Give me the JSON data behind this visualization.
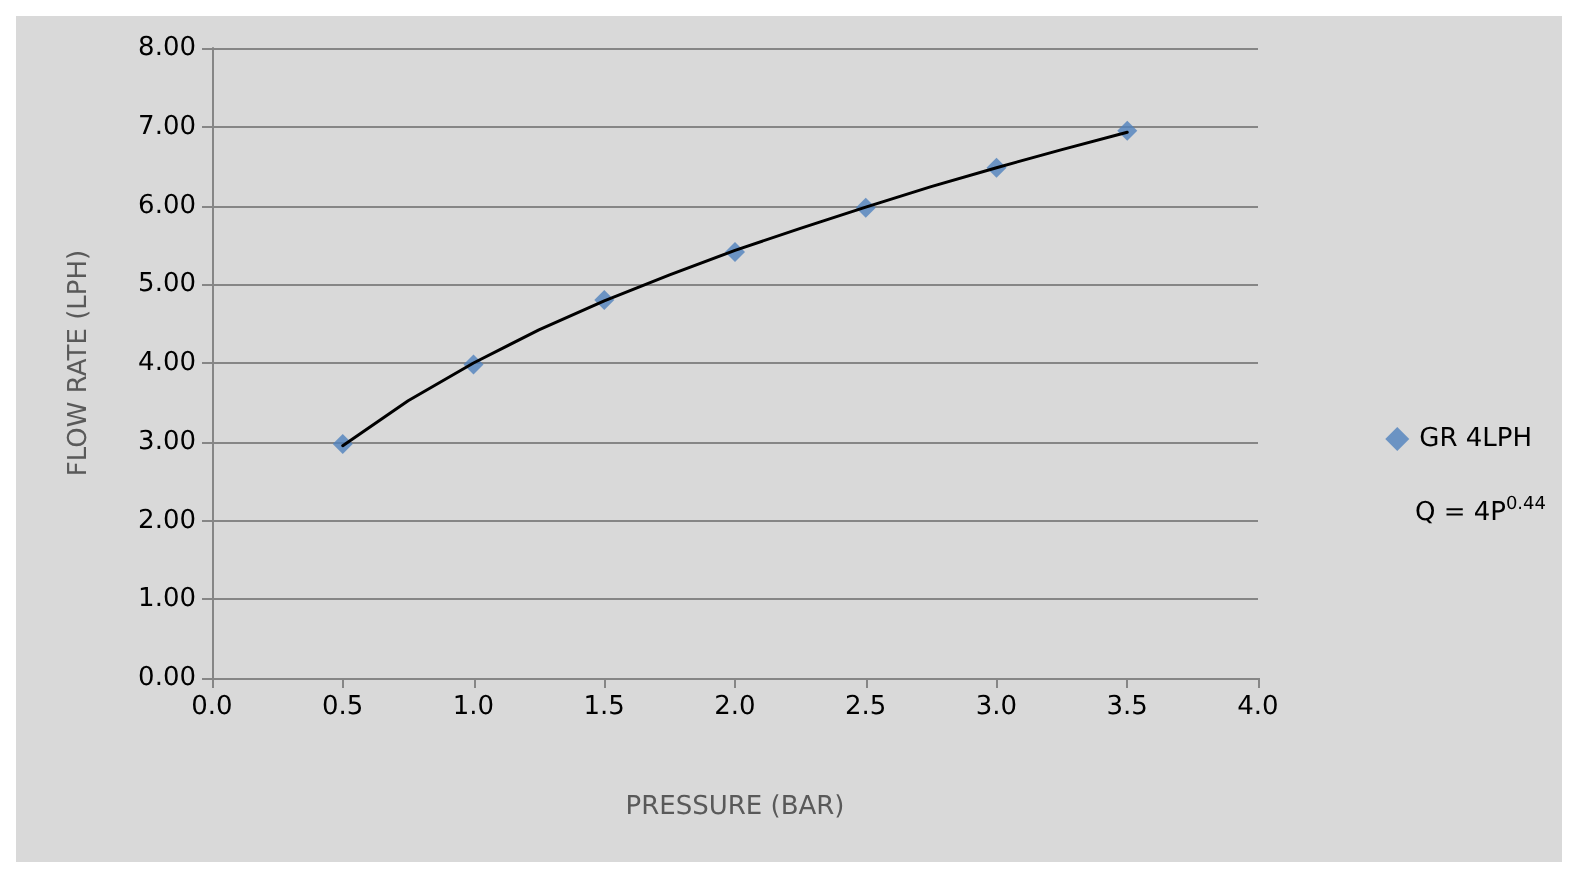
{
  "chart_data": {
    "type": "scatter",
    "xlabel": "PRESSURE (BAR)",
    "ylabel": "FLOW RATE (LPH)",
    "x": [
      0.5,
      1.0,
      1.5,
      2.0,
      2.5,
      3.0,
      3.5
    ],
    "series": [
      {
        "name": "GR 4LPH",
        "color": "#4f81bd",
        "values": [
          2.97,
          3.98,
          4.8,
          5.41,
          5.97,
          6.48,
          6.95
        ],
        "marker": "diamond"
      },
      {
        "type": "line",
        "color": "#000000",
        "x": [
          0.5,
          0.75,
          1.0,
          1.25,
          1.5,
          1.75,
          2.0,
          2.25,
          2.5,
          2.75,
          3.0,
          3.25,
          3.5
        ],
        "values": [
          2.95,
          3.52,
          4.0,
          4.42,
          4.79,
          5.12,
          5.43,
          5.71,
          5.98,
          6.24,
          6.48,
          6.71,
          6.93
        ],
        "marker": "none",
        "line_style": "solid"
      }
    ],
    "annotations": [
      "Q = 4P$^{0.44}$"
    ],
    "xlim": [
      0,
      4
    ],
    "xticks": [
      {
        "value": 0,
        "label": "0.0"
      },
      {
        "value": 0.5,
        "label": "0.5"
      },
      {
        "value": 1,
        "label": "1.0"
      },
      {
        "value": 1.5,
        "label": "1.5"
      },
      {
        "value": 2,
        "label": "2.0"
      },
      {
        "value": 2.5,
        "label": "2.5"
      },
      {
        "value": 3,
        "label": "3.0"
      },
      {
        "value": 3.5,
        "label": "3.5"
      },
      {
        "value": 4,
        "label": "4.0"
      }
    ],
    "ylim": [
      0,
      8
    ],
    "yticks": [
      {
        "value": 0,
        "label": "0.00"
      },
      {
        "value": 1,
        "label": "1.00"
      },
      {
        "value": 2,
        "label": "2.00"
      },
      {
        "value": 3,
        "label": "3.00"
      },
      {
        "value": 4,
        "label": "4.00"
      },
      {
        "value": 5,
        "label": "5.00"
      },
      {
        "value": 6,
        "label": "6.00"
      },
      {
        "value": 7,
        "label": "7.00"
      },
      {
        "value": 8,
        "label": "8.00"
      }
    ],
    "grid": "y",
    "legend": "right"
  }
}
